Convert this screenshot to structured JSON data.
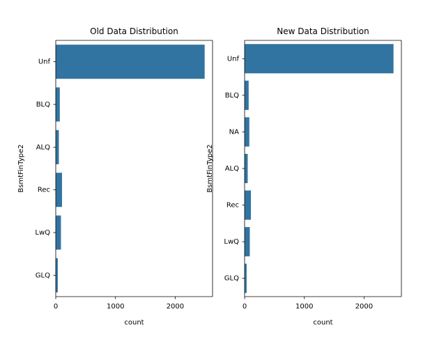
{
  "chart_data": [
    {
      "type": "bar",
      "orientation": "horizontal",
      "title": "Old Data Distribution",
      "xlabel": "count",
      "ylabel": "BsmtFinType2",
      "categories": [
        "Unf",
        "BLQ",
        "ALQ",
        "Rec",
        "LwQ",
        "GLQ"
      ],
      "values": [
        2493,
        68,
        52,
        105,
        87,
        34
      ],
      "xlim": [
        0,
        2625
      ],
      "xticks": [
        0,
        1000,
        2000
      ],
      "xtick_labels": [
        "0",
        "1000",
        "2000"
      ],
      "bar_color": "#3274a1",
      "grid": false,
      "legend": "none"
    },
    {
      "type": "bar",
      "orientation": "horizontal",
      "title": "New Data Distribution",
      "xlabel": "count",
      "ylabel": "BsmtFinType2",
      "categories": [
        "Unf",
        "BLQ",
        "NA",
        "ALQ",
        "Rec",
        "LwQ",
        "GLQ"
      ],
      "values": [
        2493,
        68,
        79,
        52,
        105,
        87,
        34
      ],
      "xlim": [
        0,
        2625
      ],
      "xticks": [
        0,
        1000,
        2000
      ],
      "xtick_labels": [
        "0",
        "1000",
        "2000"
      ],
      "bar_color": "#3274a1",
      "grid": false,
      "legend": "none"
    }
  ]
}
